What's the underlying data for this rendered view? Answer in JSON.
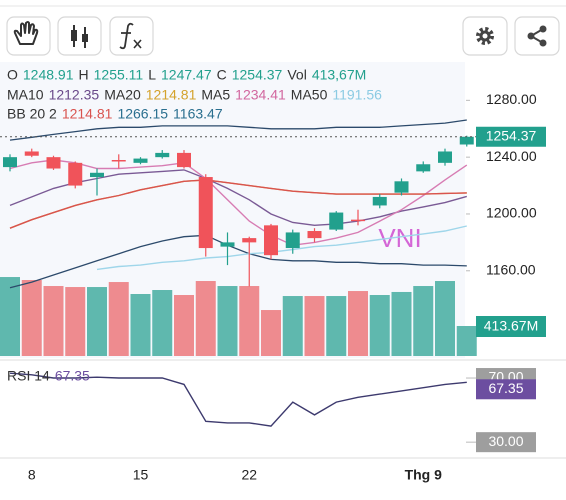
{
  "chart_data": [
    {
      "type": "candlestick",
      "categories": [
        null,
        "8",
        null,
        null,
        null,
        null,
        "15",
        null,
        null,
        null,
        null,
        "22",
        null,
        null,
        null,
        null,
        null,
        null,
        null,
        "Thg 9",
        null,
        null
      ],
      "open": [
        1233,
        1244,
        1240,
        1236,
        1226,
        1238,
        1236,
        1240,
        1243,
        1226,
        1177,
        1183,
        1192,
        1176,
        1188,
        1189,
        1196,
        1206,
        1215,
        1230,
        1236,
        1248.91
      ],
      "high": [
        1242,
        1246,
        1241,
        1237,
        1232,
        1242,
        1240,
        1245,
        1245,
        1228,
        1187,
        1184,
        1193,
        1189,
        1190,
        1202,
        1203,
        1214,
        1225,
        1237,
        1246,
        1255.11
      ],
      "low": [
        1230,
        1240,
        1231,
        1218,
        1213,
        1232,
        1235,
        1239,
        1232,
        1170,
        1164,
        1149,
        1168,
        1172,
        1180,
        1188,
        1192,
        1204,
        1213,
        1229,
        1234,
        1247.47
      ],
      "close": [
        1240,
        1241,
        1232,
        1220,
        1229,
        1237,
        1239,
        1243,
        1233,
        1176,
        1180,
        1180,
        1171,
        1187,
        1183,
        1201,
        1195,
        1212,
        1223,
        1235,
        1244,
        1254.37
      ],
      "ohlc_labels": [
        "O",
        "H",
        "L",
        "C"
      ],
      "up_color": "#22a08d",
      "down_color": "#f0535a",
      "ylim": [
        1100,
        1307
      ],
      "yticks": [
        {
          "value": 1280,
          "label": "1280.00"
        },
        {
          "value": 1240,
          "label": "1240.00"
        },
        {
          "value": 1200,
          "label": "1200.00"
        },
        {
          "value": 1160,
          "label": "1160.00"
        }
      ],
      "watermark": "VNI",
      "overlays": [
        {
          "name": "MA10",
          "color": "#7a5a95",
          "label_color": "#6a4a8a",
          "values": [
            1206,
            1212,
            1218,
            1222,
            1225,
            1228,
            1229,
            1230,
            1231,
            1225,
            1218,
            1210,
            1200,
            1194,
            1192,
            1193,
            1195,
            1198,
            1202,
            1205,
            1208,
            1212.35
          ]
        },
        {
          "name": "MA20",
          "color": "#e0a84b",
          "label_color": "#d4a22c",
          "values": [
            1190,
            1196,
            1201,
            1206,
            1210,
            1213,
            1217,
            1220,
            1223,
            1224,
            1222,
            1220,
            1218,
            1216,
            1215,
            1214,
            1214,
            1214,
            1214,
            1214,
            1214.5,
            1214.81
          ]
        },
        {
          "name": "MA5",
          "color": "#d77cb3",
          "label_color": "#d2679f",
          "values": [
            1232,
            1236,
            1238,
            1236,
            1232,
            1232,
            1233,
            1234,
            1236,
            1225,
            1210,
            1195,
            1185,
            1178,
            1180,
            1183,
            1187,
            1195,
            1203,
            1213,
            1224,
            1234.41
          ]
        },
        {
          "name": "MA50",
          "color": "#9fd6ea",
          "label_color": "#8ccbe3",
          "values": [
            null,
            null,
            null,
            null,
            1161,
            1163,
            1164,
            1166,
            1167,
            1169,
            1170,
            1172,
            1173,
            1175,
            1177,
            1178,
            1180,
            1182,
            1184,
            1186,
            1188,
            1191.56
          ]
        }
      ],
      "bands": {
        "name": "BB 20 2",
        "middle_color": "#d9534f",
        "band_color": "#2c4a6b",
        "label_color": "#2a6f8f",
        "middle": [
          1190,
          1196,
          1201,
          1206,
          1210,
          1213,
          1217,
          1220,
          1223,
          1224,
          1222,
          1220,
          1218,
          1216,
          1215,
          1214,
          1214,
          1214,
          1214,
          1214,
          1214.5,
          1214.81
        ],
        "upper": [
          1252,
          1254,
          1256,
          1258,
          1260,
          1261,
          1261,
          1262,
          1262,
          1262,
          1262,
          1261,
          1260,
          1260,
          1260,
          1261,
          1261,
          1261,
          1262,
          1263,
          1264,
          1266.15
        ],
        "lower": [
          1148,
          1152,
          1157,
          1162,
          1167,
          1172,
          1177,
          1181,
          1184,
          1185,
          1178,
          1172,
          1168,
          1167,
          1167,
          1166,
          1166,
          1165,
          1165,
          1164,
          1164,
          1163.47
        ]
      }
    },
    {
      "type": "bar",
      "name": "Vol",
      "values": [
        1089,
        1048,
        965,
        951,
        951,
        1020,
        855,
        910,
        841,
        1034,
        965,
        965,
        634,
        827,
        827,
        827,
        896,
        841,
        883,
        965,
        1034,
        413.67
      ],
      "up_color": "#5fb8ae",
      "down_color": "#ee8b8f",
      "ylim": [
        0,
        1379
      ],
      "last_label": "413.67M",
      "legend_label": "413,67M"
    },
    {
      "type": "line",
      "name": "RSI 14",
      "color": "#3d3a6e",
      "label_color": "#6c4ea0",
      "values": [
        73,
        72,
        70,
        70,
        70.5,
        70,
        70,
        70,
        66,
        43,
        42,
        42,
        40,
        55,
        47,
        55,
        58,
        60,
        62,
        64,
        66,
        67.35
      ],
      "ylim": [
        22,
        80
      ],
      "yticks": [
        {
          "value": 70,
          "label": "70.00"
        },
        {
          "value": 30,
          "label": "30.00"
        }
      ]
    }
  ]
}
